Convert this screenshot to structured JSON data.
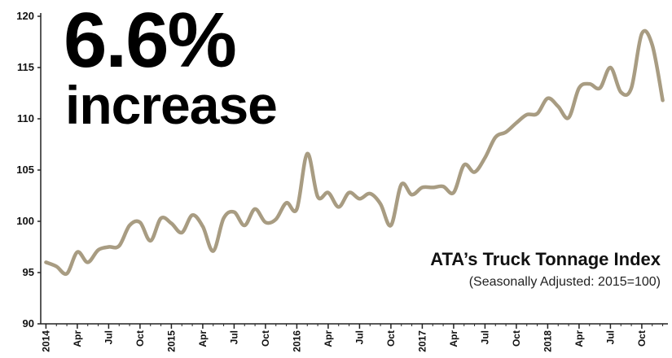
{
  "headline": {
    "value": "6.6%",
    "label": "increase"
  },
  "index_title": "ATA’s Truck Tonnage Index",
  "index_subtitle": "(Seasonally Adjusted: 2015=100)",
  "colors": {
    "line": "#a89c82",
    "axis": "#222222",
    "text": "#111111"
  },
  "chart_data": {
    "type": "line",
    "title": "ATA’s Truck Tonnage Index",
    "subtitle": "(Seasonally Adjusted: 2015=100)",
    "xlabel": "",
    "ylabel": "",
    "ylim": [
      90,
      120
    ],
    "yticks": [
      90,
      95,
      100,
      105,
      110,
      115,
      120
    ],
    "grid": false,
    "x_tick_labels": [
      {
        "label": "2014",
        "month_index": 0
      },
      {
        "label": "Apr",
        "month_index": 3
      },
      {
        "label": "Jul",
        "month_index": 6
      },
      {
        "label": "Oct",
        "month_index": 9
      },
      {
        "label": "2015",
        "month_index": 12
      },
      {
        "label": "Apr",
        "month_index": 15
      },
      {
        "label": "Jul",
        "month_index": 18
      },
      {
        "label": "Oct",
        "month_index": 21
      },
      {
        "label": "2016",
        "month_index": 24
      },
      {
        "label": "Apr",
        "month_index": 27
      },
      {
        "label": "Jul",
        "month_index": 30
      },
      {
        "label": "Oct",
        "month_index": 33
      },
      {
        "label": "2017",
        "month_index": 36
      },
      {
        "label": "Apr",
        "month_index": 39
      },
      {
        "label": "Jul",
        "month_index": 42
      },
      {
        "label": "Oct",
        "month_index": 45
      },
      {
        "label": "2018",
        "month_index": 48
      },
      {
        "label": "Apr",
        "month_index": 51
      },
      {
        "label": "Jul",
        "month_index": 54
      },
      {
        "label": "Oct",
        "month_index": 57
      }
    ],
    "series": [
      {
        "values": [
          96.0,
          95.6,
          94.9,
          97.0,
          96.0,
          97.2,
          97.5,
          97.6,
          99.6,
          99.9,
          98.1,
          100.3,
          99.8,
          98.9,
          100.6,
          99.5,
          97.1,
          100.3,
          100.9,
          99.6,
          101.2,
          99.9,
          100.2,
          101.8,
          101.2,
          106.6,
          102.4,
          102.8,
          101.4,
          102.8,
          102.2,
          102.7,
          101.7,
          99.6,
          103.6,
          102.6,
          103.3,
          103.3,
          103.4,
          102.8,
          105.5,
          104.8,
          106.2,
          108.2,
          108.7,
          109.6,
          110.4,
          110.5,
          112.0,
          111.2,
          110.1,
          113.0,
          113.4,
          113.0,
          115.0,
          112.6,
          113.0,
          118.3,
          117.2,
          111.8
        ]
      }
    ]
  }
}
